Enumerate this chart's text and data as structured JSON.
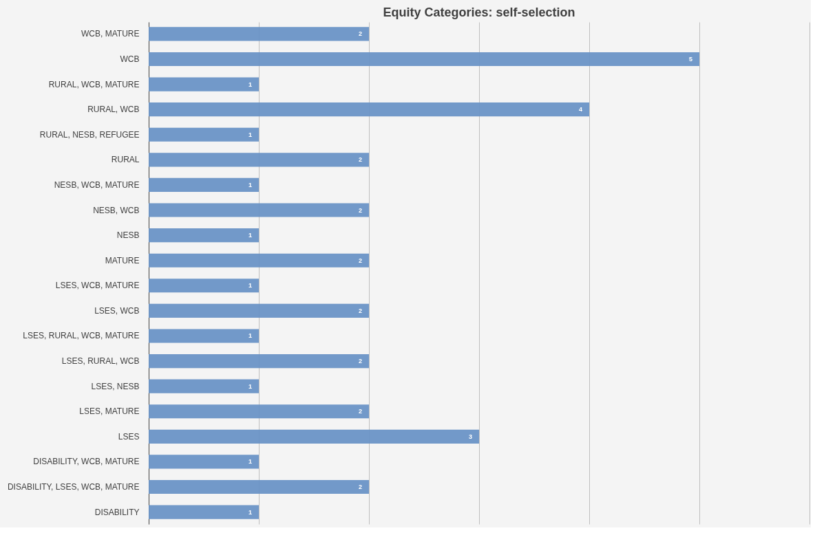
{
  "chart_data": {
    "type": "bar",
    "orientation": "horizontal",
    "title": "Equity Categories: self-selection",
    "categories": [
      "WCB, MATURE",
      "WCB",
      "RURAL, WCB, MATURE",
      "RURAL, WCB",
      "RURAL, NESB, REFUGEE",
      "RURAL",
      "NESB, WCB, MATURE",
      "NESB, WCB",
      "NESB",
      "MATURE",
      "LSES, WCB, MATURE",
      "LSES, WCB",
      "LSES, RURAL, WCB, MATURE",
      "LSES, RURAL, WCB",
      "LSES, NESB",
      "LSES, MATURE",
      "LSES",
      "DISABILITY, WCB, MATURE",
      "DISABILITY, LSES, WCB, MATURE",
      "DISABILITY"
    ],
    "values": [
      2,
      5,
      1,
      4,
      1,
      2,
      1,
      2,
      1,
      2,
      1,
      2,
      1,
      2,
      1,
      2,
      3,
      1,
      2,
      1
    ],
    "color": "#6a93c6",
    "xlim": [
      0,
      6
    ],
    "xticks": [
      {
        "value": 0,
        "label": null
      },
      {
        "value": 1,
        "label": null
      },
      {
        "value": 2,
        "label": null
      },
      {
        "value": 3,
        "label": null
      },
      {
        "value": 4,
        "label": null
      },
      {
        "value": 5,
        "label": null
      },
      {
        "value": 6,
        "label": null
      }
    ],
    "tick_labels": "y",
    "grid": "x",
    "data_labels": true
  }
}
